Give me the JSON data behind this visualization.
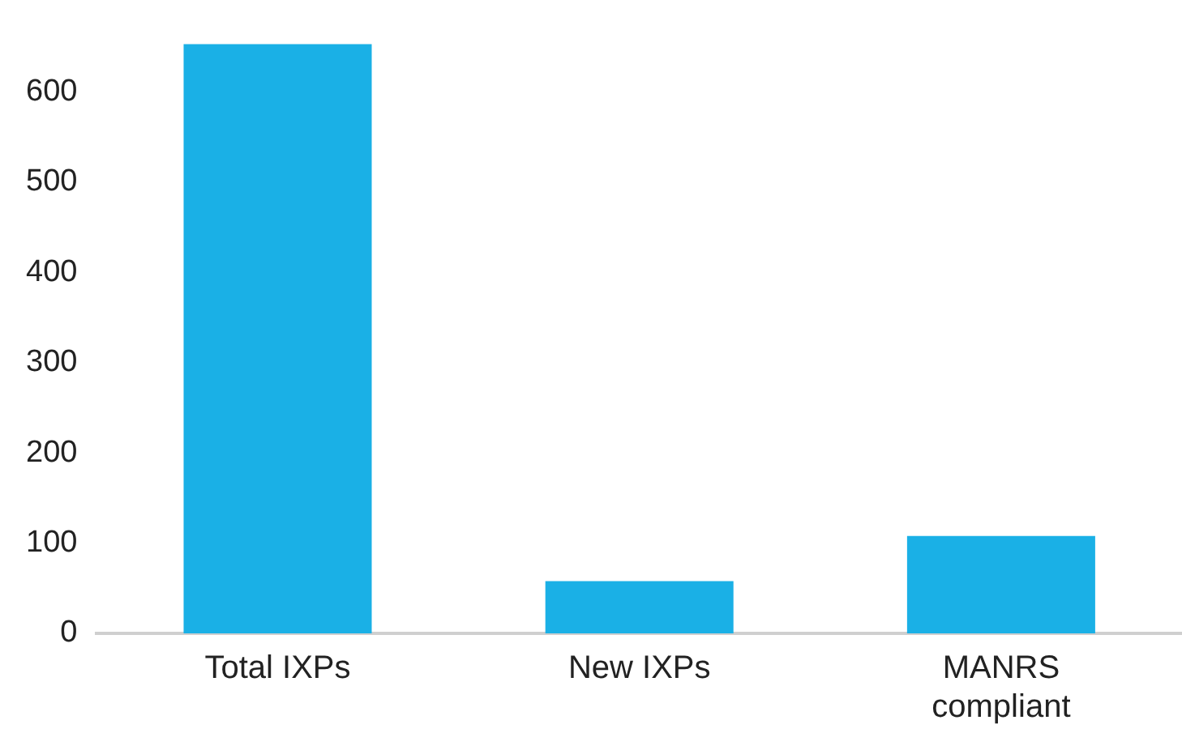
{
  "chart_data": {
    "type": "bar",
    "categories": [
      "Total IXPs",
      "New IXPs",
      "MANRS compliant"
    ],
    "values": [
      653,
      58,
      108
    ],
    "color": "#1ab0e6",
    "ylim": [
      0,
      660
    ],
    "yticks": [
      0,
      100,
      200,
      300,
      400,
      500,
      600
    ],
    "grid": false
  }
}
